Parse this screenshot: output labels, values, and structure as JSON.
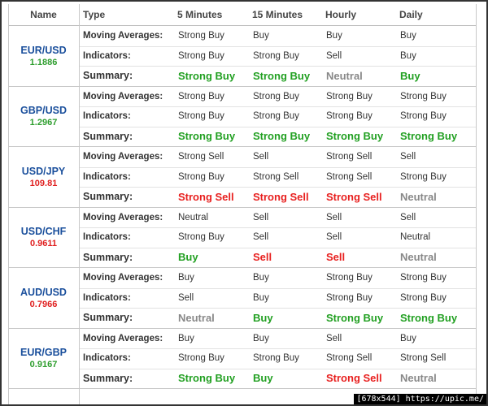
{
  "header": {
    "columns": [
      "Name",
      "Type",
      "5 Minutes",
      "15 Minutes",
      "Hourly",
      "Daily"
    ]
  },
  "rows": [
    {
      "pair": "EUR/USD",
      "price": "1.1886",
      "price_color": "#2e9e2e",
      "signals": [
        {
          "type": "Moving Averages:",
          "values": [
            "Strong Buy",
            "Buy",
            "Buy",
            "Buy"
          ]
        },
        {
          "type": "Indicators:",
          "values": [
            "Strong Buy",
            "Strong Buy",
            "Sell",
            "Buy"
          ]
        },
        {
          "type": "Summary:",
          "values": [
            "Strong Buy",
            "Strong Buy",
            "Neutral",
            "Buy"
          ],
          "colors": [
            "#22a022",
            "#22a022",
            "#888888",
            "#22a022"
          ]
        }
      ]
    },
    {
      "pair": "GBP/USD",
      "price": "1.2967",
      "price_color": "#2e9e2e",
      "signals": [
        {
          "type": "Moving Averages:",
          "values": [
            "Strong Buy",
            "Strong Buy",
            "Strong Buy",
            "Strong Buy"
          ]
        },
        {
          "type": "Indicators:",
          "values": [
            "Strong Buy",
            "Strong Buy",
            "Strong Buy",
            "Strong Buy"
          ]
        },
        {
          "type": "Summary:",
          "values": [
            "Strong Buy",
            "Strong Buy",
            "Strong Buy",
            "Strong Buy"
          ],
          "colors": [
            "#22a022",
            "#22a022",
            "#22a022",
            "#22a022"
          ]
        }
      ]
    },
    {
      "pair": "USD/JPY",
      "price": "109.81",
      "price_color": "#e02020",
      "signals": [
        {
          "type": "Moving Averages:",
          "values": [
            "Strong Sell",
            "Sell",
            "Strong Sell",
            "Sell"
          ]
        },
        {
          "type": "Indicators:",
          "values": [
            "Strong Buy",
            "Strong Sell",
            "Strong Sell",
            "Strong Buy"
          ]
        },
        {
          "type": "Summary:",
          "values": [
            "Strong Sell",
            "Strong Sell",
            "Strong Sell",
            "Neutral"
          ],
          "colors": [
            "#e8201f",
            "#e8201f",
            "#e8201f",
            "#888888"
          ]
        }
      ]
    },
    {
      "pair": "USD/CHF",
      "price": "0.9611",
      "price_color": "#e02020",
      "signals": [
        {
          "type": "Moving Averages:",
          "values": [
            "Neutral",
            "Sell",
            "Sell",
            "Sell"
          ]
        },
        {
          "type": "Indicators:",
          "values": [
            "Strong Buy",
            "Sell",
            "Sell",
            "Neutral"
          ]
        },
        {
          "type": "Summary:",
          "values": [
            "Buy",
            "Sell",
            "Sell",
            "Neutral"
          ],
          "colors": [
            "#22a022",
            "#e8201f",
            "#e8201f",
            "#888888"
          ]
        }
      ]
    },
    {
      "pair": "AUD/USD",
      "price": "0.7966",
      "price_color": "#e02020",
      "signals": [
        {
          "type": "Moving Averages:",
          "values": [
            "Buy",
            "Buy",
            "Strong Buy",
            "Strong Buy"
          ]
        },
        {
          "type": "Indicators:",
          "values": [
            "Sell",
            "Buy",
            "Strong Buy",
            "Strong Buy"
          ]
        },
        {
          "type": "Summary:",
          "values": [
            "Neutral",
            "Buy",
            "Strong Buy",
            "Strong Buy"
          ],
          "colors": [
            "#888888",
            "#22a022",
            "#22a022",
            "#22a022"
          ]
        }
      ]
    },
    {
      "pair": "EUR/GBP",
      "price": "0.9167",
      "price_color": "#2e9e2e",
      "signals": [
        {
          "type": "Moving Averages:",
          "values": [
            "Buy",
            "Buy",
            "Sell",
            "Buy"
          ]
        },
        {
          "type": "Indicators:",
          "values": [
            "Strong Buy",
            "Strong Buy",
            "Strong Sell",
            "Strong Sell"
          ]
        },
        {
          "type": "Summary:",
          "values": [
            "Strong Buy",
            "Buy",
            "Strong Sell",
            "Neutral"
          ],
          "colors": [
            "#22a022",
            "#22a022",
            "#e8201f",
            "#888888"
          ]
        }
      ]
    }
  ],
  "watermark": "[678x544] https://upic.me/"
}
